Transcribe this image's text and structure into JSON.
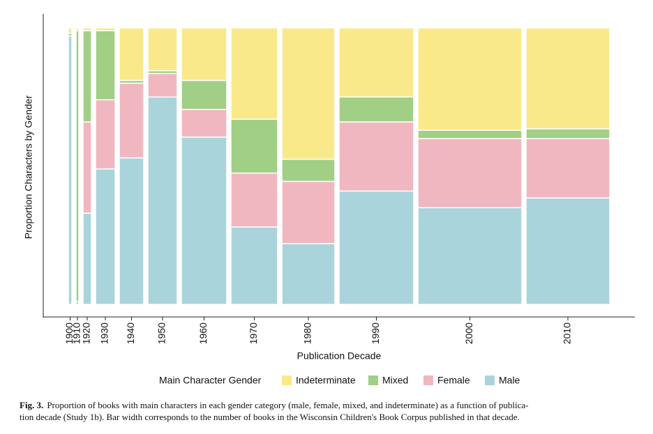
{
  "chart_data": {
    "type": "mosaic",
    "x_label": "Publication Decade",
    "y_label": "Proportion Characters by Gender",
    "legend_title": "Main Character Gender",
    "categories": [
      "1900",
      "1910",
      "1920",
      "1930",
      "1940",
      "1950",
      "1960",
      "1970",
      "1980",
      "1990",
      "2000",
      "2010"
    ],
    "bar_widths": [
      5,
      4,
      12,
      28,
      35,
      42,
      65,
      67,
      76,
      107,
      149,
      120
    ],
    "legend_order": [
      3,
      2,
      1,
      0
    ],
    "series": [
      {
        "name": "Male",
        "color": "#aad4db",
        "values": [
          97,
          1,
          33,
          49,
          53,
          75,
          60.5,
          28,
          22,
          41,
          35,
          38.5
        ]
      },
      {
        "name": "Female",
        "color": "#f0b7c1",
        "values": [
          0,
          0,
          33,
          25,
          27,
          8.5,
          10,
          19.5,
          22.5,
          25,
          25,
          21.5
        ]
      },
      {
        "name": "Mixed",
        "color": "#a1cf85",
        "values": [
          1,
          98,
          33,
          25,
          1,
          1,
          10.5,
          19.5,
          8,
          9,
          3,
          3.5
        ]
      },
      {
        "name": "Indeterminate",
        "color": "#f9e98a",
        "values": [
          2,
          1,
          1,
          1,
          19,
          15.5,
          19,
          33,
          47.5,
          25,
          37,
          36.5
        ]
      }
    ]
  },
  "caption": {
    "label": "Fig. 3.",
    "lines": [
      "Proportion of books with main characters in each gender category (male, female, mixed, and indeterminate) as a function of publica-",
      "tion decade (Study 1b). Bar width corresponds to the number of books in the Wisconsin Children's Book Corpus published in that decade."
    ]
  }
}
